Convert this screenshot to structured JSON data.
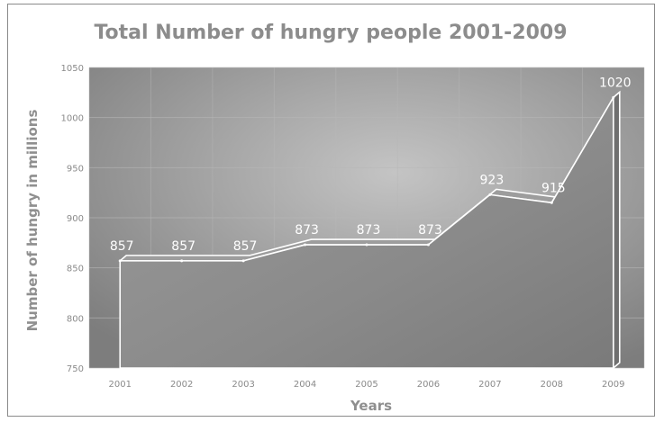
{
  "chart_data": {
    "type": "area",
    "title": "Total Number of hungry people 2001-2009",
    "xlabel": "Years",
    "ylabel": "Number of hungry in millions",
    "categories": [
      "2001",
      "2002",
      "2003",
      "2004",
      "2005",
      "2006",
      "2007",
      "2008",
      "2009"
    ],
    "values": [
      857,
      857,
      857,
      873,
      873,
      873,
      923,
      915,
      1020
    ],
    "data_labels": [
      "857",
      "857",
      "857",
      "873",
      "873",
      "873",
      "923",
      "915",
      "1020"
    ],
    "ylim": [
      750,
      1050
    ],
    "yticks": [
      "750",
      "800",
      "850",
      "900",
      "950",
      "1000",
      "1050"
    ],
    "grid": true,
    "legend": "none",
    "colors": {
      "plot_light": "#c4c4c4",
      "plot_dark": "#7d7d7d",
      "area": "#8a8a8a",
      "line": "#ffffff"
    }
  }
}
